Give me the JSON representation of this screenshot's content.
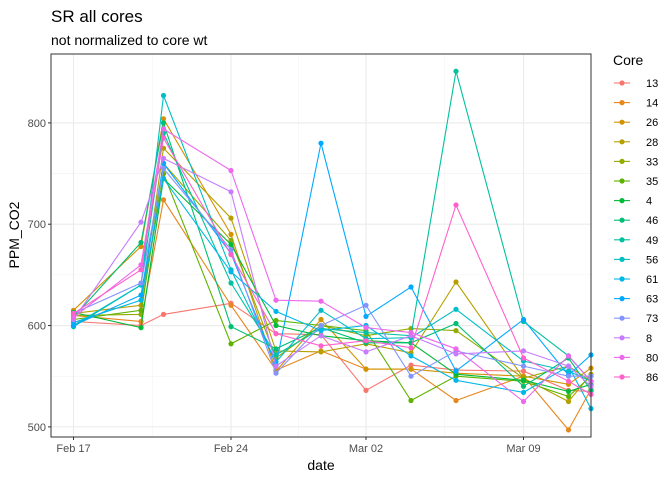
{
  "chart_data": {
    "type": "line",
    "title": "SR all cores",
    "subtitle": "not normalized to core wt",
    "xlabel": "date",
    "ylabel": "PPM_CO2",
    "x_ticks": [
      "Feb 17",
      "Feb 24",
      "Mar 02",
      "Mar 09"
    ],
    "y_ticks": [
      500,
      600,
      700,
      800
    ],
    "xlim": [
      "2021-02-16",
      "2021-03-12"
    ],
    "ylim": [
      490,
      868
    ],
    "dates": [
      "2021-02-17",
      "2021-02-20",
      "2021-02-21",
      "2021-02-24",
      "2021-02-26",
      "2021-02-28",
      "2021-03-02",
      "2021-03-04",
      "2021-03-06",
      "2021-03-09",
      "2021-03-11",
      "2021-03-12"
    ],
    "grid": true,
    "legend_title": "Core",
    "legend_position": "right",
    "series": [
      {
        "name": "13",
        "color": "#F8766D",
        "values": [
          604,
          600,
          611,
          622,
          592,
          591,
          536,
          561,
          556,
          555,
          536,
          535
        ]
      },
      {
        "name": "14",
        "color": "#E7861B",
        "values": [
          610,
          604,
          724,
          620,
          556,
          575,
          557,
          557,
          526,
          550,
          497,
          537
        ]
      },
      {
        "name": "26",
        "color": "#D39200",
        "values": [
          615,
          678,
          804,
          690,
          555,
          606,
          557,
          557,
          553,
          550,
          542,
          558
        ]
      },
      {
        "name": "28",
        "color": "#B79F00",
        "values": [
          612,
          620,
          775,
          706,
          575,
          574,
          582,
          573,
          643,
          548,
          525,
          552
        ]
      },
      {
        "name": "33",
        "color": "#93AA00",
        "values": [
          610,
          611,
          760,
          684,
          568,
          600,
          590,
          597,
          595,
          548,
          560,
          545
        ]
      },
      {
        "name": "35",
        "color": "#5EB300",
        "values": [
          606,
          615,
          750,
          582,
          605,
          600,
          595,
          526,
          550,
          545,
          530,
          550
        ]
      },
      {
        "name": "4",
        "color": "#00BA38",
        "values": [
          613,
          598,
          745,
          680,
          600,
          590,
          585,
          583,
          552,
          546,
          535,
          542
        ]
      },
      {
        "name": "46",
        "color": "#00BF74",
        "values": [
          608,
          682,
          800,
          599,
          577,
          598,
          583,
          583,
          602,
          540,
          568,
          536
        ]
      },
      {
        "name": "49",
        "color": "#00C19F",
        "values": [
          599,
          640,
          790,
          642,
          571,
          597,
          593,
          590,
          851,
          604,
          570,
          545
        ]
      },
      {
        "name": "56",
        "color": "#00BFC4",
        "values": [
          600,
          640,
          827,
          655,
          564,
          615,
          587,
          588,
          616,
          565,
          555,
          545
        ]
      },
      {
        "name": "61",
        "color": "#00B8E7",
        "values": [
          603,
          625,
          745,
          653,
          614,
          595,
          600,
          570,
          546,
          534,
          560,
          518
        ]
      },
      {
        "name": "63",
        "color": "#00A9FF",
        "values": [
          600,
          630,
          760,
          671,
          561,
          780,
          609,
          638,
          555,
          606,
          551,
          571
        ]
      },
      {
        "name": "73",
        "color": "#8494FF",
        "values": [
          612,
          642,
          755,
          675,
          553,
          600,
          620,
          550,
          575,
          560,
          550,
          550
        ]
      },
      {
        "name": "8",
        "color": "#C77CFF",
        "values": [
          606,
          702,
          765,
          732,
          560,
          590,
          574,
          590,
          572,
          575,
          560,
          540
        ]
      },
      {
        "name": "80",
        "color": "#ED68ED",
        "values": [
          608,
          660,
          794,
          753,
          625,
          624,
          598,
          593,
          577,
          525,
          570,
          545
        ]
      },
      {
        "name": "86",
        "color": "#FF61CC",
        "values": [
          612,
          655,
          785,
          670,
          592,
          580,
          585,
          578,
          719,
          568,
          545,
          532
        ]
      }
    ],
    "extra_series_colors": [
      "#FF68A1"
    ]
  }
}
